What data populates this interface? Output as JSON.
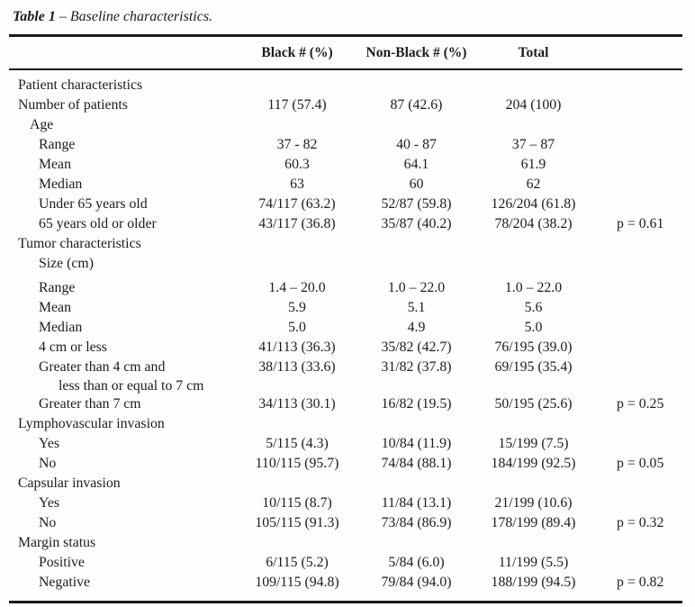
{
  "page": {
    "background": "#fefefe",
    "text_color": "#1c1c1c",
    "rule_color": "#1a1a1a"
  },
  "title": {
    "prefix": "Table 1",
    "rest": "– Baseline characteristics."
  },
  "table": {
    "columns": [
      "",
      "Black # (%)",
      "Non-Black # (%)",
      "Total",
      ""
    ],
    "rows": [
      {
        "label": "Patient characteristics",
        "indent": 0,
        "black": "",
        "nonblack": "",
        "total": "",
        "p": ""
      },
      {
        "label": "Number of patients",
        "indent": 0,
        "black": "117 (57.4)",
        "nonblack": "87 (42.6)",
        "total": "204 (100)",
        "p": ""
      },
      {
        "label": "Age",
        "indent": 1,
        "black": "",
        "nonblack": "",
        "total": "",
        "p": ""
      },
      {
        "label": "Range",
        "indent": 2,
        "black": "37 - 82",
        "nonblack": "40 - 87",
        "total": "37 – 87",
        "p": ""
      },
      {
        "label": "Mean",
        "indent": 2,
        "black": "60.3",
        "nonblack": "64.1",
        "total": "61.9",
        "p": ""
      },
      {
        "label": "Median",
        "indent": 2,
        "black": "63",
        "nonblack": "60",
        "total": "62",
        "p": ""
      },
      {
        "label": "Under 65 years old",
        "indent": 2,
        "black": "74/117 (63.2)",
        "nonblack": "52/87 (59.8)",
        "total": "126/204 (61.8)",
        "p": ""
      },
      {
        "label": "65 years old or older",
        "indent": 2,
        "black": "43/117 (36.8)",
        "nonblack": "35/87 (40.2)",
        "total": "78/204 (38.2)",
        "p": "p = 0.61"
      },
      {
        "label": "Tumor characteristics",
        "indent": 0,
        "black": "",
        "nonblack": "",
        "total": "",
        "p": ""
      },
      {
        "label": "Size (cm)",
        "indent": 2,
        "black": "",
        "nonblack": "",
        "total": "",
        "p": "",
        "gap_after": true
      },
      {
        "label": "Range",
        "indent": 2,
        "black": "1.4 – 20.0",
        "nonblack": "1.0 – 22.0",
        "total": "1.0 – 22.0",
        "p": ""
      },
      {
        "label": "Mean",
        "indent": 2,
        "black": "5.9",
        "nonblack": "5.1",
        "total": "5.6",
        "p": ""
      },
      {
        "label": "Median",
        "indent": 2,
        "black": "5.0",
        "nonblack": "4.9",
        "total": "5.0",
        "p": ""
      },
      {
        "label": "4 cm or less",
        "indent": 2,
        "black": "41/113 (36.3)",
        "nonblack": "35/82 (42.7)",
        "total": "76/195 (39.0)",
        "p": ""
      },
      {
        "label": "Greater than 4 cm and",
        "label2": "less than or equal to 7 cm",
        "indent": 2,
        "black": "38/113 (33.6)",
        "nonblack": "31/82 (37.8)",
        "total": "69/195 (35.4)",
        "p": ""
      },
      {
        "label": "Greater than 7 cm",
        "indent": 2,
        "black": "34/113 (30.1)",
        "nonblack": "16/82 (19.5)",
        "total": "50/195 (25.6)",
        "p": "p = 0.25"
      },
      {
        "label": "Lymphovascular invasion",
        "indent": 0,
        "black": "",
        "nonblack": "",
        "total": "",
        "p": ""
      },
      {
        "label": "Yes",
        "indent": 2,
        "black": "5/115 (4.3)",
        "nonblack": "10/84 (11.9)",
        "total": "15/199 (7.5)",
        "p": ""
      },
      {
        "label": "No",
        "indent": 2,
        "black": "110/115 (95.7)",
        "nonblack": "74/84 (88.1)",
        "total": "184/199 (92.5)",
        "p": "p = 0.05"
      },
      {
        "label": "Capsular invasion",
        "indent": 0,
        "black": "",
        "nonblack": "",
        "total": "",
        "p": ""
      },
      {
        "label": "Yes",
        "indent": 2,
        "black": "10/115 (8.7)",
        "nonblack": "11/84 (13.1)",
        "total": "21/199 (10.6)",
        "p": ""
      },
      {
        "label": "No",
        "indent": 2,
        "black": "105/115 (91.3)",
        "nonblack": "73/84 (86.9)",
        "total": "178/199 (89.4)",
        "p": "p = 0.32"
      },
      {
        "label": "Margin status",
        "indent": 0,
        "black": "",
        "nonblack": "",
        "total": "",
        "p": ""
      },
      {
        "label": "Positive",
        "indent": 2,
        "black": "6/115 (5.2)",
        "nonblack": "5/84 (6.0)",
        "total": "11/199 (5.5)",
        "p": ""
      },
      {
        "label": "Negative",
        "indent": 2,
        "black": "109/115 (94.8)",
        "nonblack": "79/84 (94.0)",
        "total": "188/199 (94.5)",
        "p": "p = 0.82"
      }
    ]
  }
}
